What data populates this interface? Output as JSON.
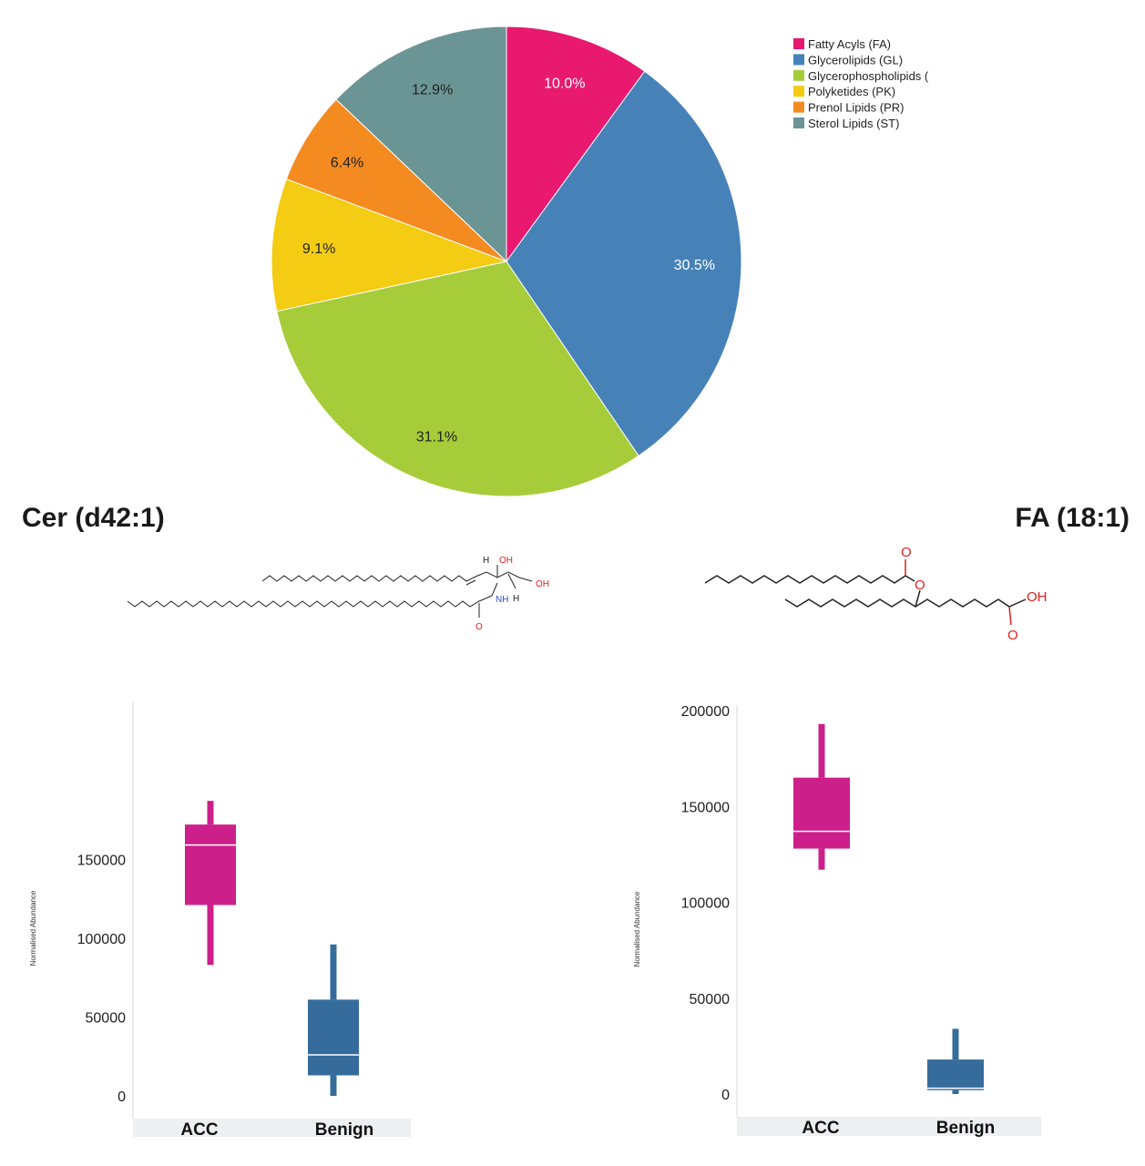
{
  "chart_data": [
    {
      "type": "pie",
      "legend_position": "top-right",
      "slices": [
        {
          "name": "Fatty Acyls (FA)",
          "value": 10.0,
          "label": "10.0%",
          "color": "#e8196e",
          "label_color": "#ffffff"
        },
        {
          "name": "Glycerolipids (GL)",
          "value": 30.5,
          "label": "30.5%",
          "color": "#4682b8",
          "label_color": "#ffffff"
        },
        {
          "name": "Glycerophospholipids (",
          "value": 31.1,
          "label": "31.1%",
          "color": "#a6cc3a",
          "label_color": "#222222"
        },
        {
          "name": "Polyketides (PK)",
          "value": 9.1,
          "label": "9.1%",
          "color": "#f3cc13",
          "label_color": "#222222"
        },
        {
          "name": "Prenol Lipids (PR)",
          "value": 6.4,
          "label": "6.4%",
          "color": "#f48b20",
          "label_color": "#222222"
        },
        {
          "name": "Sterol Lipids (ST)",
          "value": 12.9,
          "label": "12.9%",
          "color": "#6b9495",
          "label_color": "#222222"
        }
      ]
    },
    {
      "type": "box",
      "title": "Cer (d42:1)",
      "ylabel": "Normalised Abundance",
      "ylim": [
        0,
        190000
      ],
      "yticks": [
        0,
        50000,
        100000,
        150000
      ],
      "ytick_labels": [
        "0",
        "50000",
        "100000",
        "150000"
      ],
      "categories": [
        "ACC",
        "Benign"
      ],
      "boxes": [
        {
          "category": "ACC",
          "min": 83000,
          "q1": 121000,
          "median": 159000,
          "q3": 172000,
          "max": 187000,
          "color": "#cc1f8a"
        },
        {
          "category": "Benign",
          "min": 0,
          "q1": 13000,
          "median": 26000,
          "q3": 61000,
          "max": 96000,
          "color": "#366c9c"
        }
      ]
    },
    {
      "type": "box",
      "title": "FA (18:1)",
      "ylabel": "Normalised Abundance",
      "ylim": [
        0,
        200000
      ],
      "yticks": [
        0,
        50000,
        100000,
        150000,
        200000
      ],
      "ytick_labels": [
        "0",
        "50000",
        "100000",
        "150000",
        "200000"
      ],
      "categories": [
        "ACC",
        "Benign"
      ],
      "boxes": [
        {
          "category": "ACC",
          "min": 117000,
          "q1": 128000,
          "median": 137000,
          "q3": 165000,
          "max": 193000,
          "color": "#cc1f8a"
        },
        {
          "category": "Benign",
          "min": 0,
          "q1": 2000,
          "median": 3000,
          "q3": 18000,
          "max": 34000,
          "color": "#366c9c"
        }
      ]
    }
  ],
  "structures": {
    "cer": {
      "atoms": [
        "OH",
        "H",
        "OH",
        "NH",
        "H",
        "O"
      ],
      "heteroatom_color": "#e02020",
      "nitrogen_color": "#3050c0"
    },
    "fa": {
      "atoms": [
        "O",
        "O",
        "OH",
        "O"
      ],
      "heteroatom_color": "#e02020"
    }
  }
}
